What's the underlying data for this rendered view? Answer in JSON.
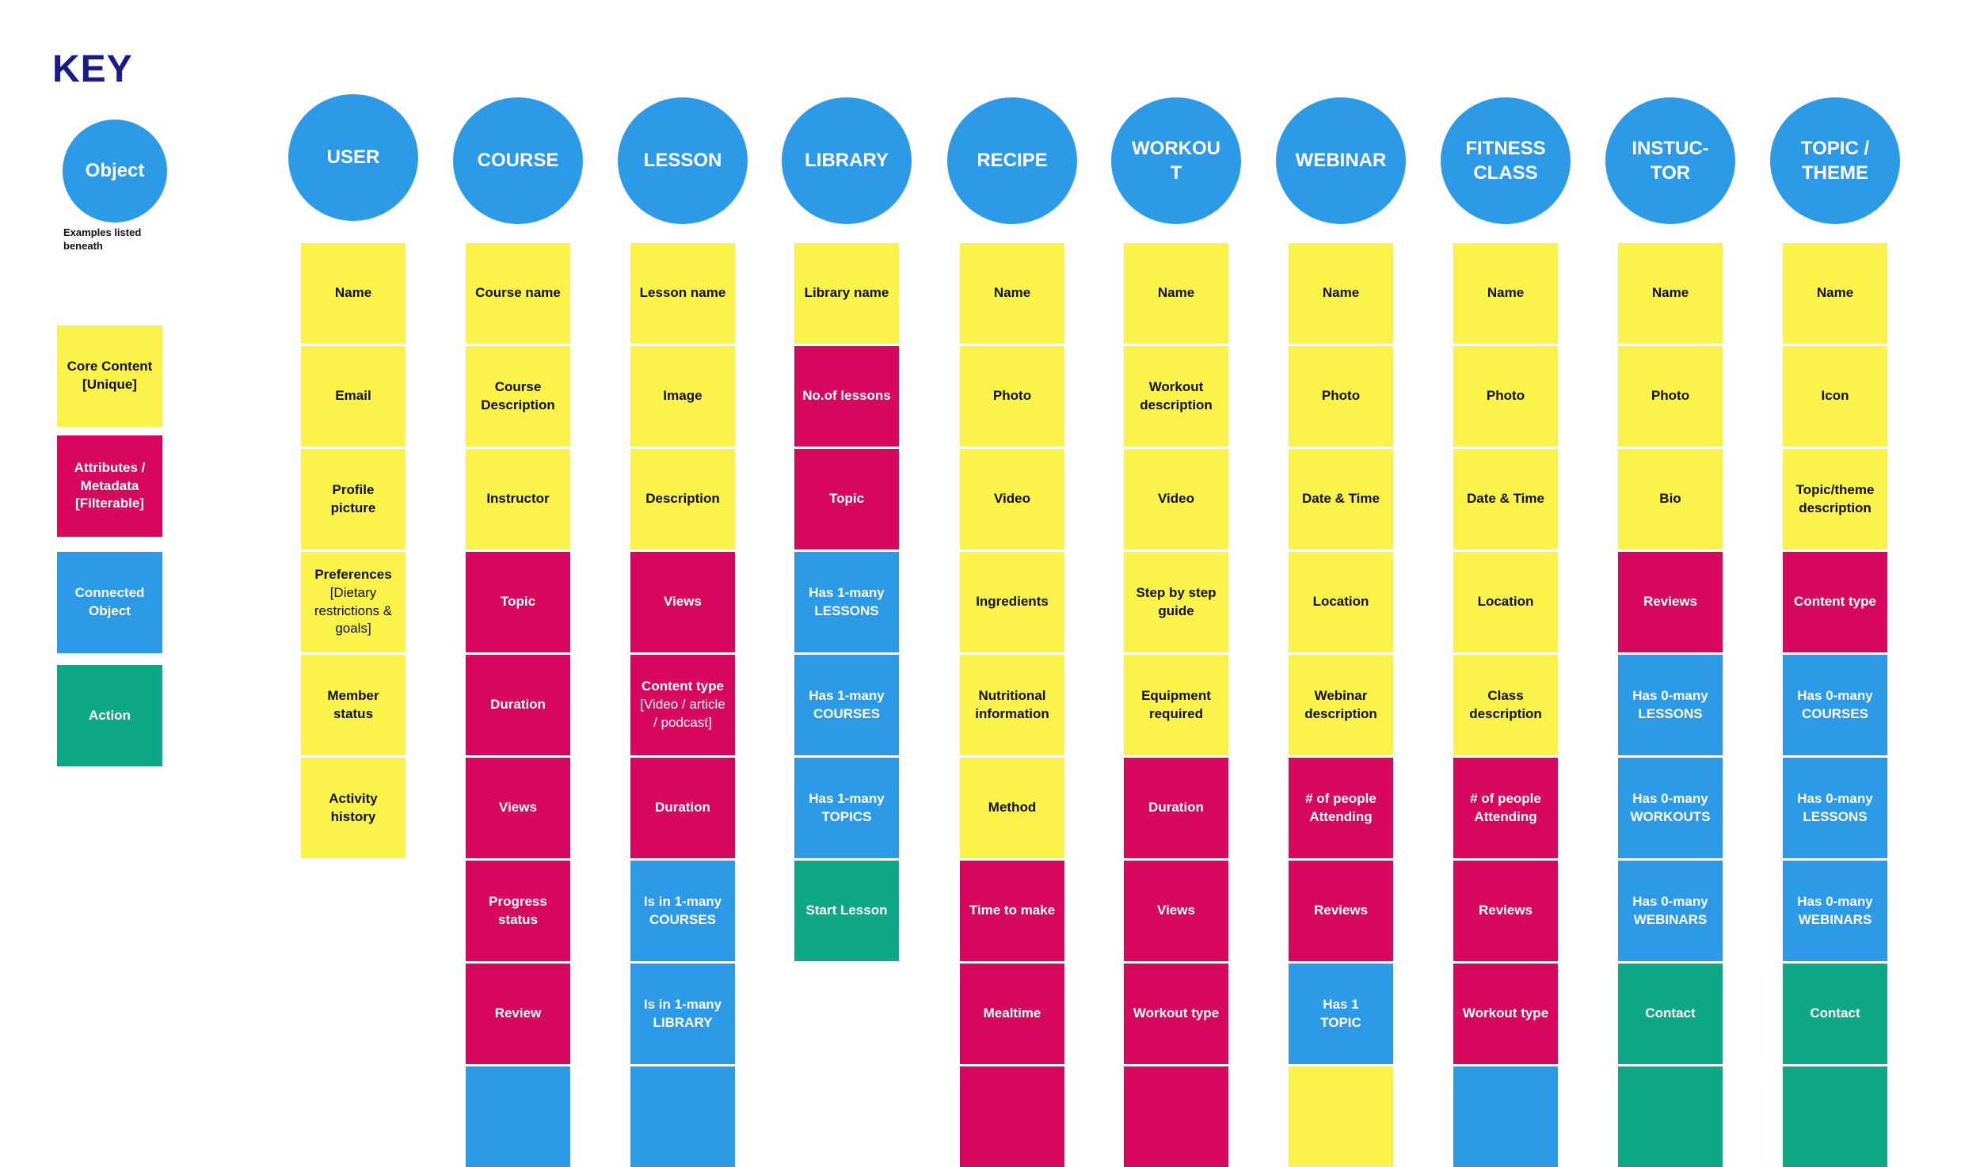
{
  "key": {
    "title": "KEY",
    "object_label": "Object",
    "note": "Examples listed beneath",
    "legend": [
      {
        "type": "core",
        "label": "Core Content [Unique]"
      },
      {
        "type": "attr",
        "label": "Attributes / Metadata [Filterable]"
      },
      {
        "type": "conn",
        "label": "Connected Object"
      },
      {
        "type": "act",
        "label": "Action"
      }
    ]
  },
  "colors": {
    "core": "#fbf24a",
    "attr": "#d7075e",
    "conn": "#2d9ae8",
    "act": "#0fa887",
    "title": "#1a1a8c"
  },
  "objects": [
    {
      "name": "USER",
      "cards": [
        {
          "type": "core",
          "text": "Name"
        },
        {
          "type": "core",
          "text": "Email"
        },
        {
          "type": "core",
          "text": "Profile\npicture"
        },
        {
          "type": "core",
          "text": "Preferences",
          "sub": "[Dietary\nrestrictions &\ngoals]"
        },
        {
          "type": "core",
          "text": "Member\nstatus"
        },
        {
          "type": "core",
          "text": "Activity\nhistory"
        }
      ]
    },
    {
      "name": "COURSE",
      "cards": [
        {
          "type": "core",
          "text": "Course name"
        },
        {
          "type": "core",
          "text": "Course\nDescription"
        },
        {
          "type": "core",
          "text": "Instructor"
        },
        {
          "type": "attr",
          "text": "Topic"
        },
        {
          "type": "attr",
          "text": "Duration"
        },
        {
          "type": "attr",
          "text": "Views"
        },
        {
          "type": "attr",
          "text": "Progress\nstatus"
        },
        {
          "type": "attr",
          "text": "Review"
        },
        {
          "type": "conn",
          "text": ""
        }
      ]
    },
    {
      "name": "LESSON",
      "cards": [
        {
          "type": "core",
          "text": "Lesson name"
        },
        {
          "type": "core",
          "text": "Image"
        },
        {
          "type": "core",
          "text": "Description"
        },
        {
          "type": "attr",
          "text": "Views"
        },
        {
          "type": "attr",
          "text": "Content type",
          "sub": "[Video / article\n/ podcast]"
        },
        {
          "type": "attr",
          "text": "Duration"
        },
        {
          "type": "conn",
          "text": "Is in 1-many\nCOURSES"
        },
        {
          "type": "conn",
          "text": "Is in 1-many\nLIBRARY"
        },
        {
          "type": "conn",
          "text": ""
        }
      ]
    },
    {
      "name": "LIBRARY",
      "cards": [
        {
          "type": "core",
          "text": "Library name"
        },
        {
          "type": "attr",
          "text": "No.of lessons"
        },
        {
          "type": "attr",
          "text": "Topic"
        },
        {
          "type": "conn",
          "text": "Has 1-many\nLESSONS"
        },
        {
          "type": "conn",
          "text": "Has 1-many\nCOURSES"
        },
        {
          "type": "conn",
          "text": "Has 1-many\nTOPICS"
        },
        {
          "type": "act",
          "text": "Start Lesson"
        }
      ]
    },
    {
      "name": "RECIPE",
      "cards": [
        {
          "type": "core",
          "text": "Name"
        },
        {
          "type": "core",
          "text": "Photo"
        },
        {
          "type": "core",
          "text": "Video"
        },
        {
          "type": "core",
          "text": "Ingredients"
        },
        {
          "type": "core",
          "text": "Nutritional\ninformation"
        },
        {
          "type": "core",
          "text": "Method"
        },
        {
          "type": "attr",
          "text": "Time to make"
        },
        {
          "type": "attr",
          "text": "Mealtime"
        },
        {
          "type": "attr",
          "text": ""
        }
      ]
    },
    {
      "name": "WORKOU\nT",
      "cards": [
        {
          "type": "core",
          "text": "Name"
        },
        {
          "type": "core",
          "text": "Workout\ndescription"
        },
        {
          "type": "core",
          "text": "Video"
        },
        {
          "type": "core",
          "text": "Step by step\nguide"
        },
        {
          "type": "core",
          "text": "Equipment\nrequired"
        },
        {
          "type": "attr",
          "text": "Duration"
        },
        {
          "type": "attr",
          "text": "Views"
        },
        {
          "type": "attr",
          "text": "Workout type"
        },
        {
          "type": "attr",
          "text": ""
        }
      ]
    },
    {
      "name": "WEBINAR",
      "cards": [
        {
          "type": "core",
          "text": "Name"
        },
        {
          "type": "core",
          "text": "Photo"
        },
        {
          "type": "core",
          "text": "Date & Time"
        },
        {
          "type": "core",
          "text": "Location"
        },
        {
          "type": "core",
          "text": "Webinar\ndescription"
        },
        {
          "type": "attr",
          "text": "# of people\nAttending"
        },
        {
          "type": "attr",
          "text": "Reviews"
        },
        {
          "type": "conn",
          "text": "Has 1\nTOPIC"
        },
        {
          "type": "core",
          "text": ""
        }
      ]
    },
    {
      "name": "FITNESS\nCLASS",
      "cards": [
        {
          "type": "core",
          "text": "Name"
        },
        {
          "type": "core",
          "text": "Photo"
        },
        {
          "type": "core",
          "text": "Date & Time"
        },
        {
          "type": "core",
          "text": "Location"
        },
        {
          "type": "core",
          "text": "Class\ndescription"
        },
        {
          "type": "attr",
          "text": "# of people\nAttending"
        },
        {
          "type": "attr",
          "text": "Reviews"
        },
        {
          "type": "attr",
          "text": "Workout type"
        },
        {
          "type": "conn",
          "text": ""
        }
      ]
    },
    {
      "name": "INSTUC-\nTOR",
      "cards": [
        {
          "type": "core",
          "text": "Name"
        },
        {
          "type": "core",
          "text": "Photo"
        },
        {
          "type": "core",
          "text": "Bio"
        },
        {
          "type": "attr",
          "text": "Reviews"
        },
        {
          "type": "conn",
          "text": "Has 0-many\nLESSONS"
        },
        {
          "type": "conn",
          "text": "Has 0-many\nWORKOUTS"
        },
        {
          "type": "conn",
          "text": "Has 0-many\nWEBINARS"
        },
        {
          "type": "act",
          "text": "Contact"
        },
        {
          "type": "act",
          "text": ""
        }
      ]
    },
    {
      "name": "TOPIC /\nTHEME",
      "cards": [
        {
          "type": "core",
          "text": "Name"
        },
        {
          "type": "core",
          "text": "Icon"
        },
        {
          "type": "core",
          "text": "Topic/theme\ndescription"
        },
        {
          "type": "attr",
          "text": "Content type"
        },
        {
          "type": "conn",
          "text": "Has 0-many\nCOURSES"
        },
        {
          "type": "conn",
          "text": "Has 0-many\nLESSONS"
        },
        {
          "type": "conn",
          "text": "Has 0-many\nWEBINARS"
        },
        {
          "type": "act",
          "text": "Contact"
        },
        {
          "type": "act",
          "text": ""
        }
      ]
    }
  ]
}
